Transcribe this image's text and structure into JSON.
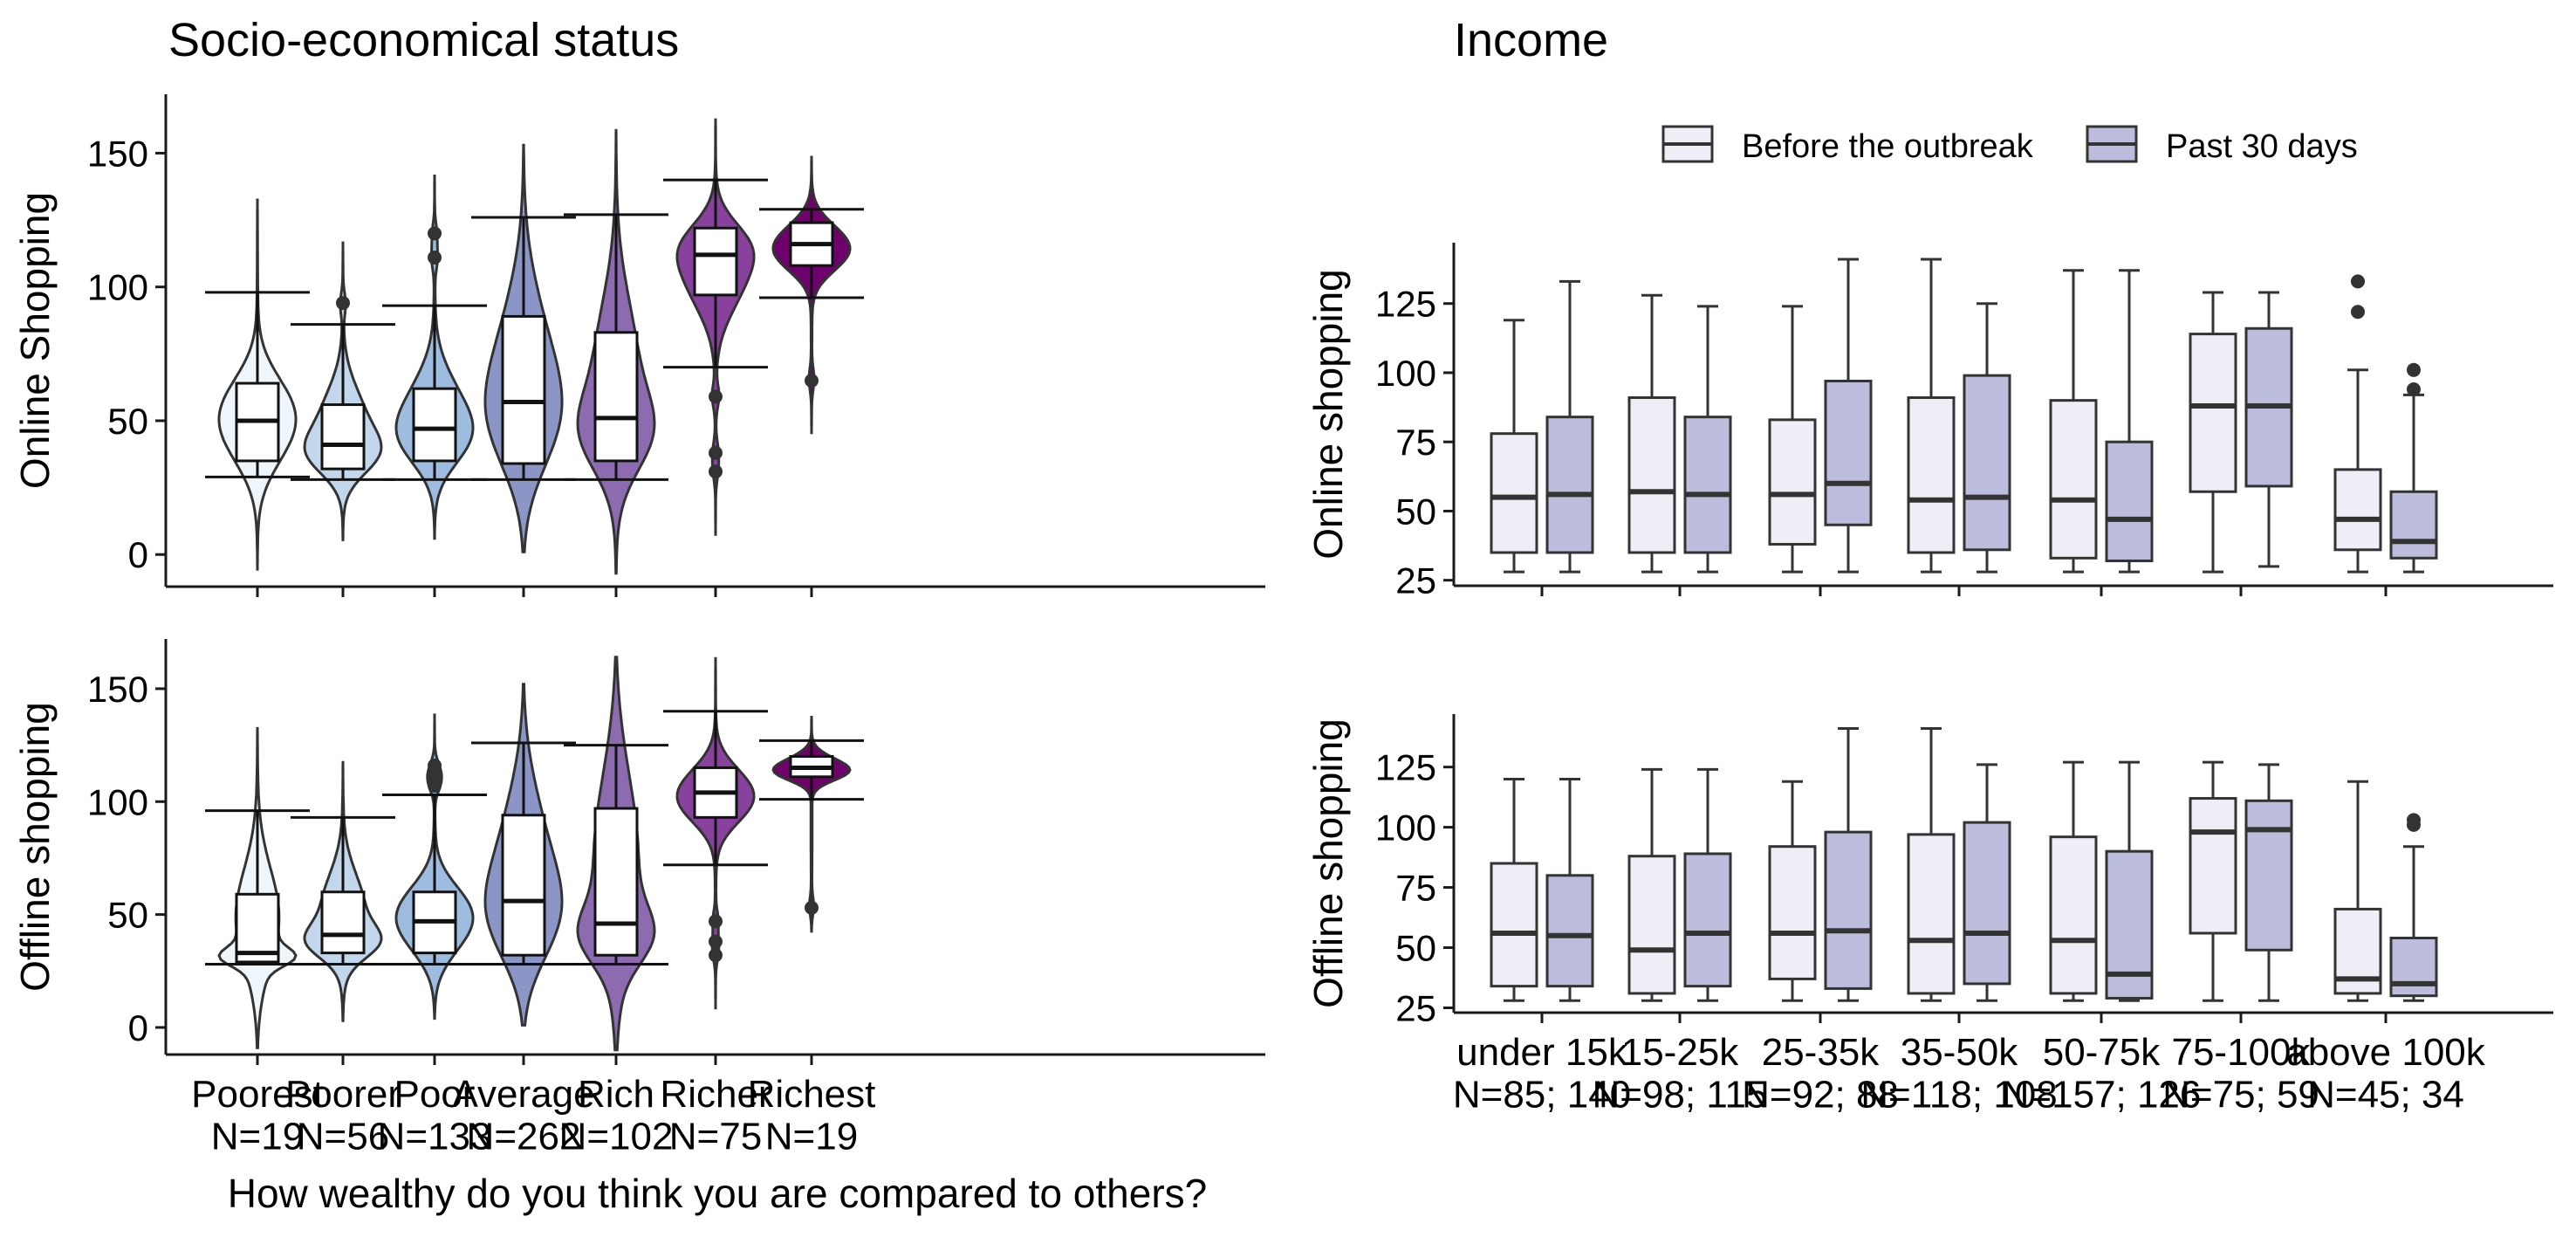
{
  "panels": {
    "left_title": "Socio-economical status",
    "right_title": "Income"
  },
  "legend": {
    "items": [
      {
        "label": "Before the outbreak",
        "color": "#efedf5"
      },
      {
        "label": "Past 30 days",
        "color": "#bcbddc"
      }
    ]
  },
  "colors": {
    "axis": "#1a1a1a",
    "box_edge": "#333333",
    "violin_fills": [
      "#eef6fb",
      "#c2d6ec",
      "#9ebcdf",
      "#8c96c6",
      "#8c6bb1",
      "#88419d",
      "#6e016b"
    ]
  },
  "chart_data": [
    {
      "type": "violin",
      "panel": "Socio-economical status",
      "ylabel": "Online Shopping",
      "ylim": [
        -12,
        172
      ],
      "yticks": [
        0,
        50,
        100,
        150
      ],
      "categories": [
        "Poorest\nN=19",
        "Poorer\nN=56",
        "Poor\nN=133",
        "Average\nN=262",
        "Rich\nN=102",
        "Richer\nN=75",
        "Richest\nN=19"
      ],
      "violins": [
        {
          "min": -6,
          "max": 133,
          "q1": 35,
          "median": 50,
          "q3": 64,
          "whisker_low": 29,
          "whisker_high": 98,
          "outliers": []
        },
        {
          "min": 5,
          "max": 117,
          "q1": 32,
          "median": 41,
          "q3": 56,
          "whisker_low": 28,
          "whisker_high": 86,
          "outliers": [
            94
          ]
        },
        {
          "min": 6,
          "max": 142,
          "q1": 35,
          "median": 47,
          "q3": 62,
          "whisker_low": 28,
          "whisker_high": 93,
          "outliers": [
            111,
            120
          ]
        },
        {
          "min": 1,
          "max": 153,
          "q1": 34,
          "median": 57,
          "q3": 89,
          "whisker_low": 28,
          "whisker_high": 126,
          "outliers": []
        },
        {
          "min": -7,
          "max": 159,
          "q1": 35,
          "median": 51,
          "q3": 83,
          "whisker_low": 28,
          "whisker_high": 127,
          "outliers": []
        },
        {
          "min": 7,
          "max": 163,
          "q1": 97,
          "median": 112,
          "q3": 122,
          "whisker_low": 70,
          "whisker_high": 140,
          "outliers": [
            59,
            38,
            31
          ]
        },
        {
          "min": 45,
          "max": 149,
          "q1": 108,
          "median": 116,
          "q3": 124,
          "whisker_low": 96,
          "whisker_high": 129,
          "outliers": [
            65
          ]
        }
      ]
    },
    {
      "type": "violin",
      "panel": "Socio-economical status",
      "ylabel": "Offline shopping",
      "xlabel": "How wealthy do you think you are compared to others?",
      "ylim": [
        -12,
        172
      ],
      "yticks": [
        0,
        50,
        100,
        150
      ],
      "categories": [
        "Poorest\nN=19",
        "Poorer\nN=56",
        "Poor\nN=133",
        "Average\nN=262",
        "Rich\nN=102",
        "Richer\nN=75",
        "Richest\nN=19"
      ],
      "violins": [
        {
          "min": -9,
          "max": 133,
          "q1": 29,
          "median": 33,
          "q3": 59,
          "whisker_low": 28,
          "whisker_high": 96,
          "outliers": []
        },
        {
          "min": 3,
          "max": 118,
          "q1": 33,
          "median": 41,
          "q3": 60,
          "whisker_low": 28,
          "whisker_high": 93,
          "outliers": []
        },
        {
          "min": 4,
          "max": 139,
          "q1": 33,
          "median": 47,
          "q3": 60,
          "whisker_low": 28,
          "whisker_high": 103,
          "outliers": [
            107,
            110,
            113,
            116
          ]
        },
        {
          "min": 1,
          "max": 152,
          "q1": 32,
          "median": 56,
          "q3": 94,
          "whisker_low": 28,
          "whisker_high": 126,
          "outliers": []
        },
        {
          "min": -10,
          "max": 164,
          "q1": 32,
          "median": 46,
          "q3": 97,
          "whisker_low": 28,
          "whisker_high": 125,
          "outliers": []
        },
        {
          "min": 8,
          "max": 164,
          "q1": 93,
          "median": 104,
          "q3": 115,
          "whisker_low": 72,
          "whisker_high": 140,
          "outliers": [
            47,
            38,
            32
          ]
        },
        {
          "min": 42,
          "max": 138,
          "q1": 111,
          "median": 115,
          "q3": 120,
          "whisker_low": 101,
          "whisker_high": 127,
          "outliers": [
            53
          ]
        }
      ]
    },
    {
      "type": "box",
      "panel": "Income",
      "ylabel": "Online shopping",
      "ylim": [
        23,
        147
      ],
      "yticks": [
        25,
        50,
        75,
        100,
        125
      ],
      "categories": [
        "under 15k\nN=85; 140",
        "15-25k\nN=98; 115",
        "25-35k\nN=92; 88",
        "35-50k\nN=118; 108",
        "50-75k\nN=157; 126",
        "75-100k\nN=75; 59",
        "above 100k\nN=45; 34"
      ],
      "series": [
        {
          "name": "Before the outbreak",
          "boxes": [
            {
              "low": 28,
              "q1": 35,
              "median": 55,
              "q3": 78,
              "high": 119,
              "outliers": []
            },
            {
              "low": 28,
              "q1": 35,
              "median": 57,
              "q3": 91,
              "high": 128,
              "outliers": []
            },
            {
              "low": 28,
              "q1": 38,
              "median": 56,
              "q3": 83,
              "high": 124,
              "outliers": []
            },
            {
              "low": 28,
              "q1": 35,
              "median": 54,
              "q3": 91,
              "high": 141,
              "outliers": []
            },
            {
              "low": 28,
              "q1": 33,
              "median": 54,
              "q3": 90,
              "high": 137,
              "outliers": []
            },
            {
              "low": 28,
              "q1": 57,
              "median": 88,
              "q3": 114,
              "high": 129,
              "outliers": []
            },
            {
              "low": 28,
              "q1": 36,
              "median": 47,
              "q3": 65,
              "high": 101,
              "outliers": [
                122,
                133
              ]
            }
          ]
        },
        {
          "name": "Past 30 days",
          "boxes": [
            {
              "low": 28,
              "q1": 35,
              "median": 56,
              "q3": 84,
              "high": 133,
              "outliers": []
            },
            {
              "low": 28,
              "q1": 35,
              "median": 56,
              "q3": 84,
              "high": 124,
              "outliers": []
            },
            {
              "low": 28,
              "q1": 45,
              "median": 60,
              "q3": 97,
              "high": 141,
              "outliers": []
            },
            {
              "low": 28,
              "q1": 36,
              "median": 55,
              "q3": 99,
              "high": 125,
              "outliers": []
            },
            {
              "low": 28,
              "q1": 32,
              "median": 47,
              "q3": 75,
              "high": 137,
              "outliers": []
            },
            {
              "low": 30,
              "q1": 59,
              "median": 88,
              "q3": 116,
              "high": 129,
              "outliers": []
            },
            {
              "low": 28,
              "q1": 33,
              "median": 39,
              "q3": 57,
              "high": 92,
              "outliers": [
                101,
                94
              ]
            }
          ]
        }
      ]
    },
    {
      "type": "box",
      "panel": "Income",
      "ylabel": "Offline shopping",
      "ylim": [
        23,
        147
      ],
      "yticks": [
        25,
        50,
        75,
        100,
        125
      ],
      "categories": [
        "under 15k\nN=85; 140",
        "15-25k\nN=98; 115",
        "25-35k\nN=92; 88",
        "35-50k\nN=118; 108",
        "50-75k\nN=157; 126",
        "75-100k\nN=75; 59",
        "above 100k\nN=45; 34"
      ],
      "series": [
        {
          "name": "Before the outbreak",
          "boxes": [
            {
              "low": 28,
              "q1": 34,
              "median": 56,
              "q3": 85,
              "high": 120,
              "outliers": []
            },
            {
              "low": 28,
              "q1": 31,
              "median": 49,
              "q3": 88,
              "high": 124,
              "outliers": []
            },
            {
              "low": 28,
              "q1": 37,
              "median": 56,
              "q3": 92,
              "high": 119,
              "outliers": []
            },
            {
              "low": 28,
              "q1": 31,
              "median": 53,
              "q3": 97,
              "high": 141,
              "outliers": []
            },
            {
              "low": 28,
              "q1": 31,
              "median": 53,
              "q3": 96,
              "high": 127,
              "outliers": []
            },
            {
              "low": 28,
              "q1": 56,
              "median": 98,
              "q3": 112,
              "high": 127,
              "outliers": []
            },
            {
              "low": 28,
              "q1": 31,
              "median": 37,
              "q3": 66,
              "high": 119,
              "outliers": []
            }
          ]
        },
        {
          "name": "Past 30 days",
          "boxes": [
            {
              "low": 28,
              "q1": 34,
              "median": 55,
              "q3": 80,
              "high": 120,
              "outliers": []
            },
            {
              "low": 28,
              "q1": 34,
              "median": 56,
              "q3": 89,
              "high": 124,
              "outliers": []
            },
            {
              "low": 28,
              "q1": 33,
              "median": 57,
              "q3": 98,
              "high": 141,
              "outliers": []
            },
            {
              "low": 28,
              "q1": 35,
              "median": 56,
              "q3": 102,
              "high": 126,
              "outliers": []
            },
            {
              "low": 28,
              "q1": 29,
              "median": 39,
              "q3": 90,
              "high": 127,
              "outliers": []
            },
            {
              "low": 28,
              "q1": 49,
              "median": 99,
              "q3": 111,
              "high": 126,
              "outliers": []
            },
            {
              "low": 28,
              "q1": 30,
              "median": 35,
              "q3": 54,
              "high": 92,
              "outliers": [
                101,
                103
              ]
            }
          ]
        }
      ]
    }
  ]
}
